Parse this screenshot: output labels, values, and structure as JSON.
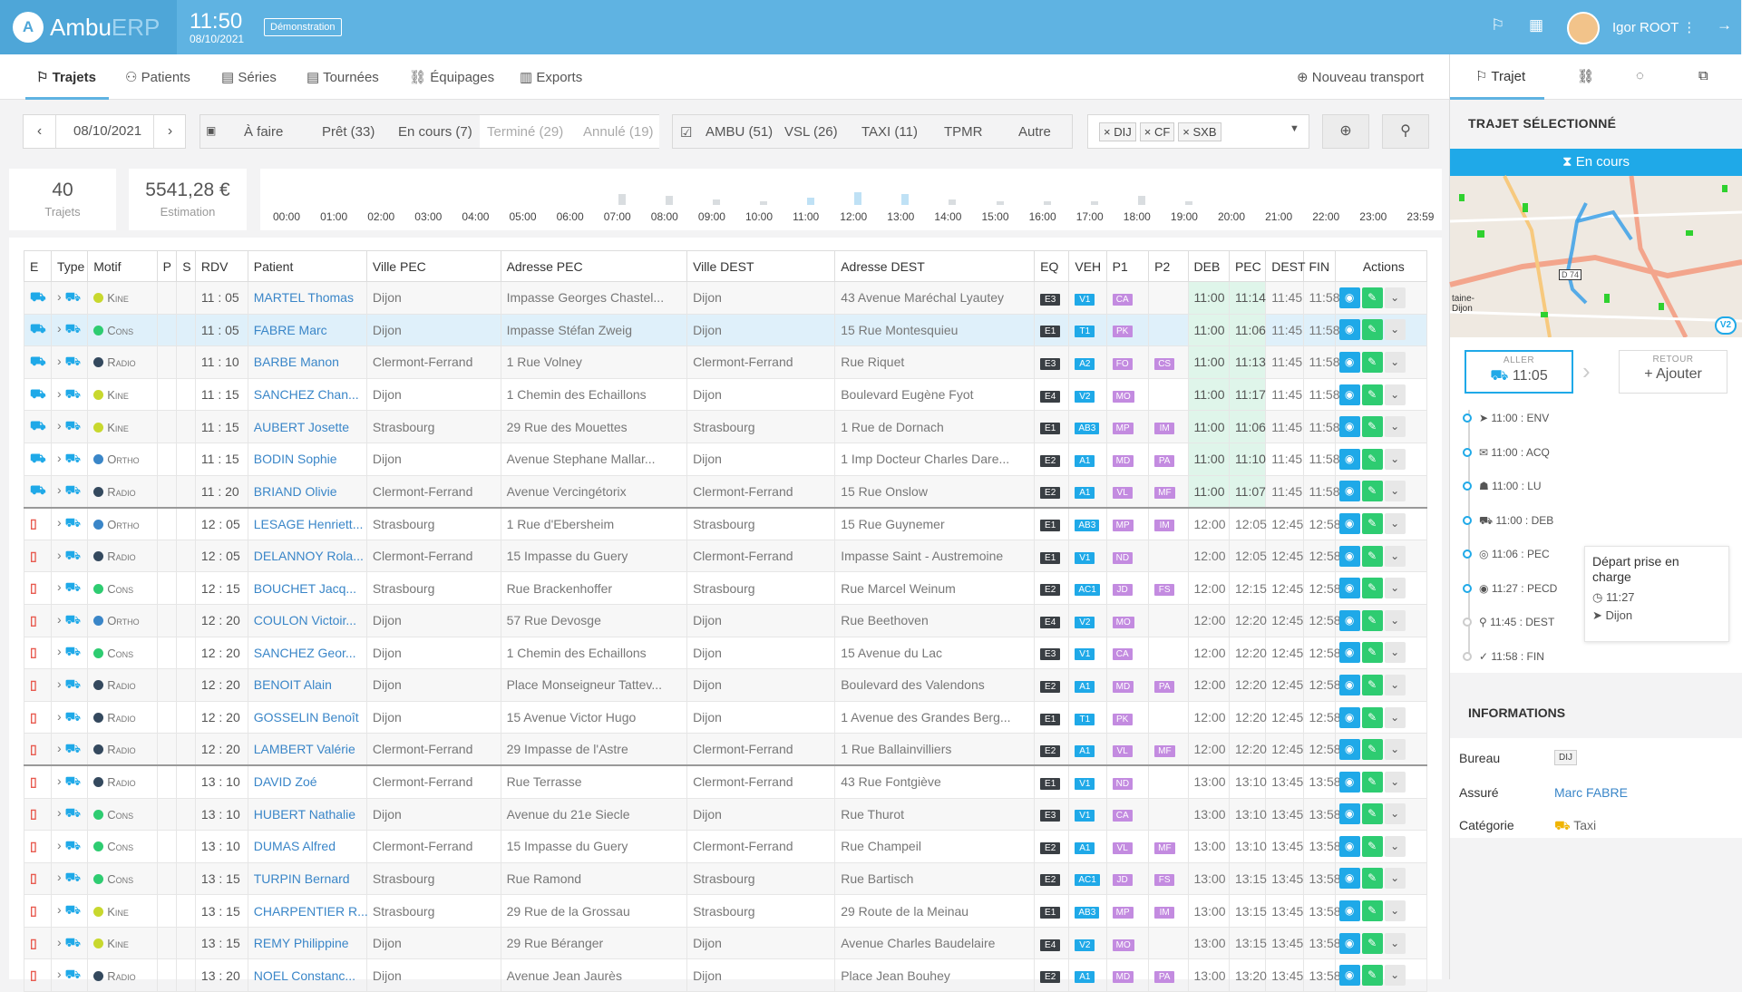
{
  "app": {
    "name_main": "Ambu",
    "name_sub": "ERP",
    "clock_time": "11:50",
    "clock_date": "08/10/2021",
    "demo_label": "Démonstration",
    "user_name": "Igor ROOT"
  },
  "nav": {
    "tabs": [
      "Trajets",
      "Patients",
      "Séries",
      "Tournées",
      "Équipages",
      "Exports"
    ],
    "new_transport": "Nouveau transport"
  },
  "filters": {
    "date": "08/10/2021",
    "statuses": [
      "À faire",
      "Prêt (33)",
      "En cours (7)",
      "Terminé (29)",
      "Annulé (19)"
    ],
    "types": [
      "AMBU (51)",
      "VSL (26)",
      "TAXI (11)",
      "TPMR",
      "Autre"
    ],
    "offices": [
      "DIJ",
      "CF",
      "SXB"
    ]
  },
  "stats": {
    "trips_value": "40",
    "trips_label": "Trajets",
    "estimate_value": "5541,28 €",
    "estimate_label": "Estimation"
  },
  "timeline_hours": [
    "00:00",
    "01:00",
    "02:00",
    "03:00",
    "04:00",
    "05:00",
    "06:00",
    "07:00",
    "08:00",
    "09:00",
    "10:00",
    "11:00",
    "12:00",
    "13:00",
    "14:00",
    "15:00",
    "16:00",
    "17:00",
    "18:00",
    "19:00",
    "20:00",
    "21:00",
    "22:00",
    "23:00",
    "23:59"
  ],
  "table": {
    "headers": [
      "E",
      "Type",
      "Motif",
      "P",
      "S",
      "RDV",
      "Patient",
      "Ville PEC",
      "Adresse PEC",
      "Ville DEST",
      "Adresse DEST",
      "EQ",
      "VEH",
      "P1",
      "P2",
      "DEB",
      "PEC",
      "DEST",
      "FIN",
      "Actions"
    ],
    "rows": [
      {
        "motif": "Kine",
        "mc": "#c8d82e",
        "rdv": "11 : 05",
        "patient": "MARTEL Thomas",
        "vpec": "Dijon",
        "apec": "Impasse Georges Chastel...",
        "vdest": "Dijon",
        "adest": "43 Avenue Maréchal Lyautey",
        "eq": "E3",
        "veh": "V1",
        "p1": "CA",
        "p2": "",
        "deb": "11:00",
        "pec": "11:14",
        "dest": "11:45",
        "fin": "11:58"
      },
      {
        "motif": "Cons",
        "mc": "#2ecc71",
        "rdv": "11 : 05",
        "patient": "FABRE Marc",
        "vpec": "Dijon",
        "apec": "Impasse Stéfan Zweig",
        "vdest": "Dijon",
        "adest": "15 Rue Montesquieu",
        "eq": "E1",
        "veh": "T1",
        "p1": "PK",
        "p2": "",
        "deb": "11:00",
        "pec": "11:06",
        "dest": "11:45",
        "fin": "11:58"
      },
      {
        "motif": "Radio",
        "mc": "#34495e",
        "rdv": "11 : 10",
        "patient": "BARBE Manon",
        "vpec": "Clermont-Ferrand",
        "apec": "1 Rue Volney",
        "vdest": "Clermont-Ferrand",
        "adest": "Rue Riquet",
        "eq": "E3",
        "veh": "A2",
        "p1": "FO",
        "p2": "CS",
        "deb": "11:00",
        "pec": "11:13",
        "dest": "11:45",
        "fin": "11:58"
      },
      {
        "motif": "Kine",
        "mc": "#c8d82e",
        "rdv": "11 : 15",
        "patient": "SANCHEZ Chan...",
        "vpec": "Dijon",
        "apec": "1 Chemin des Echaillons",
        "vdest": "Dijon",
        "adest": "Boulevard Eugène Fyot",
        "eq": "E4",
        "veh": "V2",
        "p1": "MO",
        "p2": "",
        "deb": "11:00",
        "pec": "11:17",
        "dest": "11:45",
        "fin": "11:58"
      },
      {
        "motif": "Kine",
        "mc": "#c8d82e",
        "rdv": "11 : 15",
        "patient": "AUBERT Josette",
        "vpec": "Strasbourg",
        "apec": "29 Rue des Mouettes",
        "vdest": "Strasbourg",
        "adest": "1 Rue de Dornach",
        "eq": "E1",
        "veh": "AB3",
        "p1": "MP",
        "p2": "IM",
        "deb": "11:00",
        "pec": "11:06",
        "dest": "11:45",
        "fin": "11:58"
      },
      {
        "motif": "Ortho",
        "mc": "#3a86c8",
        "rdv": "11 : 15",
        "patient": "BODIN Sophie",
        "vpec": "Dijon",
        "apec": "Avenue Stephane Mallar...",
        "vdest": "Dijon",
        "adest": "1 Imp Docteur Charles Dare...",
        "eq": "E2",
        "veh": "A1",
        "p1": "MD",
        "p2": "PA",
        "deb": "11:00",
        "pec": "11:10",
        "dest": "11:45",
        "fin": "11:58"
      },
      {
        "motif": "Radio",
        "mc": "#34495e",
        "rdv": "11 : 20",
        "patient": "BRIAND Olivie",
        "vpec": "Clermont-Ferrand",
        "apec": "Avenue Vercingétorix",
        "vdest": "Clermont-Ferrand",
        "adest": "15 Rue Onslow",
        "eq": "E2",
        "veh": "A1",
        "p1": "VL",
        "p2": "MF",
        "deb": "11:00",
        "pec": "11:07",
        "dest": "11:45",
        "fin": "11:58"
      },
      {
        "motif": "Ortho",
        "mc": "#3a86c8",
        "rdv": "12 : 05",
        "patient": "LESAGE Henriett...",
        "vpec": "Strasbourg",
        "apec": "1 Rue d'Ebersheim",
        "vdest": "Strasbourg",
        "adest": "15 Rue Guynemer",
        "eq": "E1",
        "veh": "AB3",
        "p1": "MP",
        "p2": "IM",
        "deb": "12:00",
        "pec": "12:05",
        "dest": "12:45",
        "fin": "12:58"
      },
      {
        "motif": "Radio",
        "mc": "#34495e",
        "rdv": "12 : 05",
        "patient": "DELANNOY Rola...",
        "vpec": "Clermont-Ferrand",
        "apec": "15 Impasse du Guery",
        "vdest": "Clermont-Ferrand",
        "adest": "Impasse Saint - Austremoine",
        "eq": "E1",
        "veh": "V1",
        "p1": "ND",
        "p2": "",
        "deb": "12:00",
        "pec": "12:05",
        "dest": "12:45",
        "fin": "12:58"
      },
      {
        "motif": "Cons",
        "mc": "#2ecc71",
        "rdv": "12 : 15",
        "patient": "BOUCHET Jacq...",
        "vpec": "Strasbourg",
        "apec": "Rue Brackenhoffer",
        "vdest": "Strasbourg",
        "adest": "Rue Marcel Weinum",
        "eq": "E2",
        "veh": "AC1",
        "p1": "JD",
        "p2": "FS",
        "deb": "12:00",
        "pec": "12:15",
        "dest": "12:45",
        "fin": "12:58"
      },
      {
        "motif": "Ortho",
        "mc": "#3a86c8",
        "rdv": "12 : 20",
        "patient": "COULON Victoir...",
        "vpec": "Dijon",
        "apec": "57 Rue Devosge",
        "vdest": "Dijon",
        "adest": "Rue Beethoven",
        "eq": "E4",
        "veh": "V2",
        "p1": "MO",
        "p2": "",
        "deb": "12:00",
        "pec": "12:20",
        "dest": "12:45",
        "fin": "12:58"
      },
      {
        "motif": "Cons",
        "mc": "#2ecc71",
        "rdv": "12 : 20",
        "patient": "SANCHEZ Geor...",
        "vpec": "Dijon",
        "apec": "1 Chemin des Echaillons",
        "vdest": "Dijon",
        "adest": "15 Avenue du Lac",
        "eq": "E3",
        "veh": "V1",
        "p1": "CA",
        "p2": "",
        "deb": "12:00",
        "pec": "12:20",
        "dest": "12:45",
        "fin": "12:58"
      },
      {
        "motif": "Radio",
        "mc": "#34495e",
        "rdv": "12 : 20",
        "patient": "BENOIT Alain",
        "vpec": "Dijon",
        "apec": "Place Monseigneur Tattev...",
        "vdest": "Dijon",
        "adest": "Boulevard des Valendons",
        "eq": "E2",
        "veh": "A1",
        "p1": "MD",
        "p2": "PA",
        "deb": "12:00",
        "pec": "12:20",
        "dest": "12:45",
        "fin": "12:58"
      },
      {
        "motif": "Radio",
        "mc": "#34495e",
        "rdv": "12 : 20",
        "patient": "GOSSELIN Benoît",
        "vpec": "Dijon",
        "apec": "15 Avenue Victor Hugo",
        "vdest": "Dijon",
        "adest": "1 Avenue des Grandes Berg...",
        "eq": "E1",
        "veh": "T1",
        "p1": "PK",
        "p2": "",
        "deb": "12:00",
        "pec": "12:20",
        "dest": "12:45",
        "fin": "12:58"
      },
      {
        "motif": "Radio",
        "mc": "#34495e",
        "rdv": "12 : 20",
        "patient": "LAMBERT Valérie",
        "vpec": "Clermont-Ferrand",
        "apec": "29 Impasse de l'Astre",
        "vdest": "Clermont-Ferrand",
        "adest": "1 Rue Ballainvilliers",
        "eq": "E2",
        "veh": "A1",
        "p1": "VL",
        "p2": "MF",
        "deb": "12:00",
        "pec": "12:20",
        "dest": "12:45",
        "fin": "12:58"
      },
      {
        "motif": "Radio",
        "mc": "#34495e",
        "rdv": "13 : 10",
        "patient": "DAVID Zoé",
        "vpec": "Clermont-Ferrand",
        "apec": "Rue Terrasse",
        "vdest": "Clermont-Ferrand",
        "adest": "43 Rue Fontgiève",
        "eq": "E1",
        "veh": "V1",
        "p1": "ND",
        "p2": "",
        "deb": "13:00",
        "pec": "13:10",
        "dest": "13:45",
        "fin": "13:58"
      },
      {
        "motif": "Cons",
        "mc": "#2ecc71",
        "rdv": "13 : 10",
        "patient": "HUBERT Nathalie",
        "vpec": "Dijon",
        "apec": "Avenue du 21e Siecle",
        "vdest": "Dijon",
        "adest": "Rue Thurot",
        "eq": "E3",
        "veh": "V1",
        "p1": "CA",
        "p2": "",
        "deb": "13:00",
        "pec": "13:10",
        "dest": "13:45",
        "fin": "13:58"
      },
      {
        "motif": "Cons",
        "mc": "#2ecc71",
        "rdv": "13 : 10",
        "patient": "DUMAS Alfred",
        "vpec": "Clermont-Ferrand",
        "apec": "15 Impasse du Guery",
        "vdest": "Clermont-Ferrand",
        "adest": "Rue Champeil",
        "eq": "E2",
        "veh": "A1",
        "p1": "VL",
        "p2": "MF",
        "deb": "13:00",
        "pec": "13:10",
        "dest": "13:45",
        "fin": "13:58"
      },
      {
        "motif": "Cons",
        "mc": "#2ecc71",
        "rdv": "13 : 15",
        "patient": "TURPIN Bernard",
        "vpec": "Strasbourg",
        "apec": "Rue Ramond",
        "vdest": "Strasbourg",
        "adest": "Rue Bartisch",
        "eq": "E2",
        "veh": "AC1",
        "p1": "JD",
        "p2": "FS",
        "deb": "13:00",
        "pec": "13:15",
        "dest": "13:45",
        "fin": "13:58"
      },
      {
        "motif": "Kine",
        "mc": "#c8d82e",
        "rdv": "13 : 15",
        "patient": "CHARPENTIER R...",
        "vpec": "Strasbourg",
        "apec": "29 Rue de la Grossau",
        "vdest": "Strasbourg",
        "adest": "29 Route de la Meinau",
        "eq": "E1",
        "veh": "AB3",
        "p1": "MP",
        "p2": "IM",
        "deb": "13:00",
        "pec": "13:15",
        "dest": "13:45",
        "fin": "13:58"
      },
      {
        "motif": "Kine",
        "mc": "#c8d82e",
        "rdv": "13 : 15",
        "patient": "REMY Philippine",
        "vpec": "Dijon",
        "apec": "29 Rue Béranger",
        "vdest": "Dijon",
        "adest": "Avenue Charles Baudelaire",
        "eq": "E4",
        "veh": "V2",
        "p1": "MO",
        "p2": "",
        "deb": "13:00",
        "pec": "13:15",
        "dest": "13:45",
        "fin": "13:58"
      },
      {
        "motif": "Radio",
        "mc": "#34495e",
        "rdv": "13 : 20",
        "patient": "NOEL Constanc...",
        "vpec": "Dijon",
        "apec": "Avenue Jean Jaurès",
        "vdest": "Dijon",
        "adest": "Place Jean Bouhey",
        "eq": "E2",
        "veh": "A1",
        "p1": "MD",
        "p2": "PA",
        "deb": "13:00",
        "pec": "13:20",
        "dest": "13:45",
        "fin": "13:58"
      }
    ]
  },
  "right_panel": {
    "tab_trajet": "Trajet",
    "section_title": "TRAJET SÉLECTIONNÉ",
    "status": "En cours",
    "map_label_city": "Dijon",
    "map_label_city_prefix": "taine-",
    "map_badge": "V2",
    "map_road": "D 74",
    "aller_label": "ALLER",
    "aller_time": "11:05",
    "retour_label": "RETOUR",
    "retour_action": "Ajouter",
    "timeline": [
      "11:00 : ENV",
      "11:00 : ACQ",
      "11:00 : LU",
      "11:00 : DEB",
      "11:06 : PEC",
      "11:27 : PECD",
      "11:45 : DEST",
      "11:58 : FIN"
    ],
    "tooltip_title": "Départ prise en charge",
    "tooltip_time": "11:27",
    "tooltip_place": "Dijon",
    "info_title": "INFORMATIONS",
    "info": {
      "bureau_label": "Bureau",
      "bureau_value": "DIJ",
      "assure_label": "Assuré",
      "assure_value": "Marc FABRE",
      "categorie_label": "Catégorie",
      "categorie_value": "Taxi"
    }
  }
}
